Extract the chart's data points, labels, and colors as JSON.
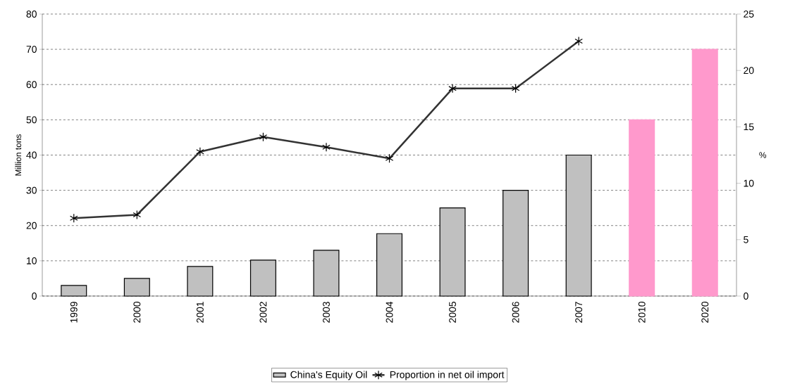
{
  "chart_data": {
    "type": "bar",
    "categories": [
      "1999",
      "2000",
      "2001",
      "2002",
      "2003",
      "2004",
      "2005",
      "2006",
      "2007",
      "2010",
      "2020"
    ],
    "series": [
      {
        "name": "China's Equity Oil",
        "color": "#c0c0c0",
        "colors": [
          "#c0c0c0",
          "#c0c0c0",
          "#c0c0c0",
          "#c0c0c0",
          "#c0c0c0",
          "#c0c0c0",
          "#c0c0c0",
          "#c0c0c0",
          "#c0c0c0",
          "#ff99cc",
          "#ff99cc"
        ],
        "values": [
          3,
          5,
          8.4,
          10.2,
          13,
          17.7,
          25,
          30,
          40,
          50,
          70
        ]
      },
      {
        "name": "Proportion in net oil import",
        "type": "line",
        "axis": "y2",
        "color": "#333333",
        "marker": "cross",
        "values": [
          6.9,
          7.2,
          12.8,
          14.1,
          13.2,
          12.2,
          18.4,
          18.4,
          22.6,
          null,
          null
        ]
      }
    ],
    "ylabel": "Million tons",
    "y2label": "%",
    "ylim": [
      0,
      80
    ],
    "yticks": [
      0,
      10,
      20,
      30,
      40,
      50,
      60,
      70,
      80
    ],
    "y2lim": [
      0,
      25
    ],
    "y2ticks": [
      0,
      5,
      10,
      15,
      20,
      25
    ],
    "grid": "y",
    "legend": "bottom"
  }
}
